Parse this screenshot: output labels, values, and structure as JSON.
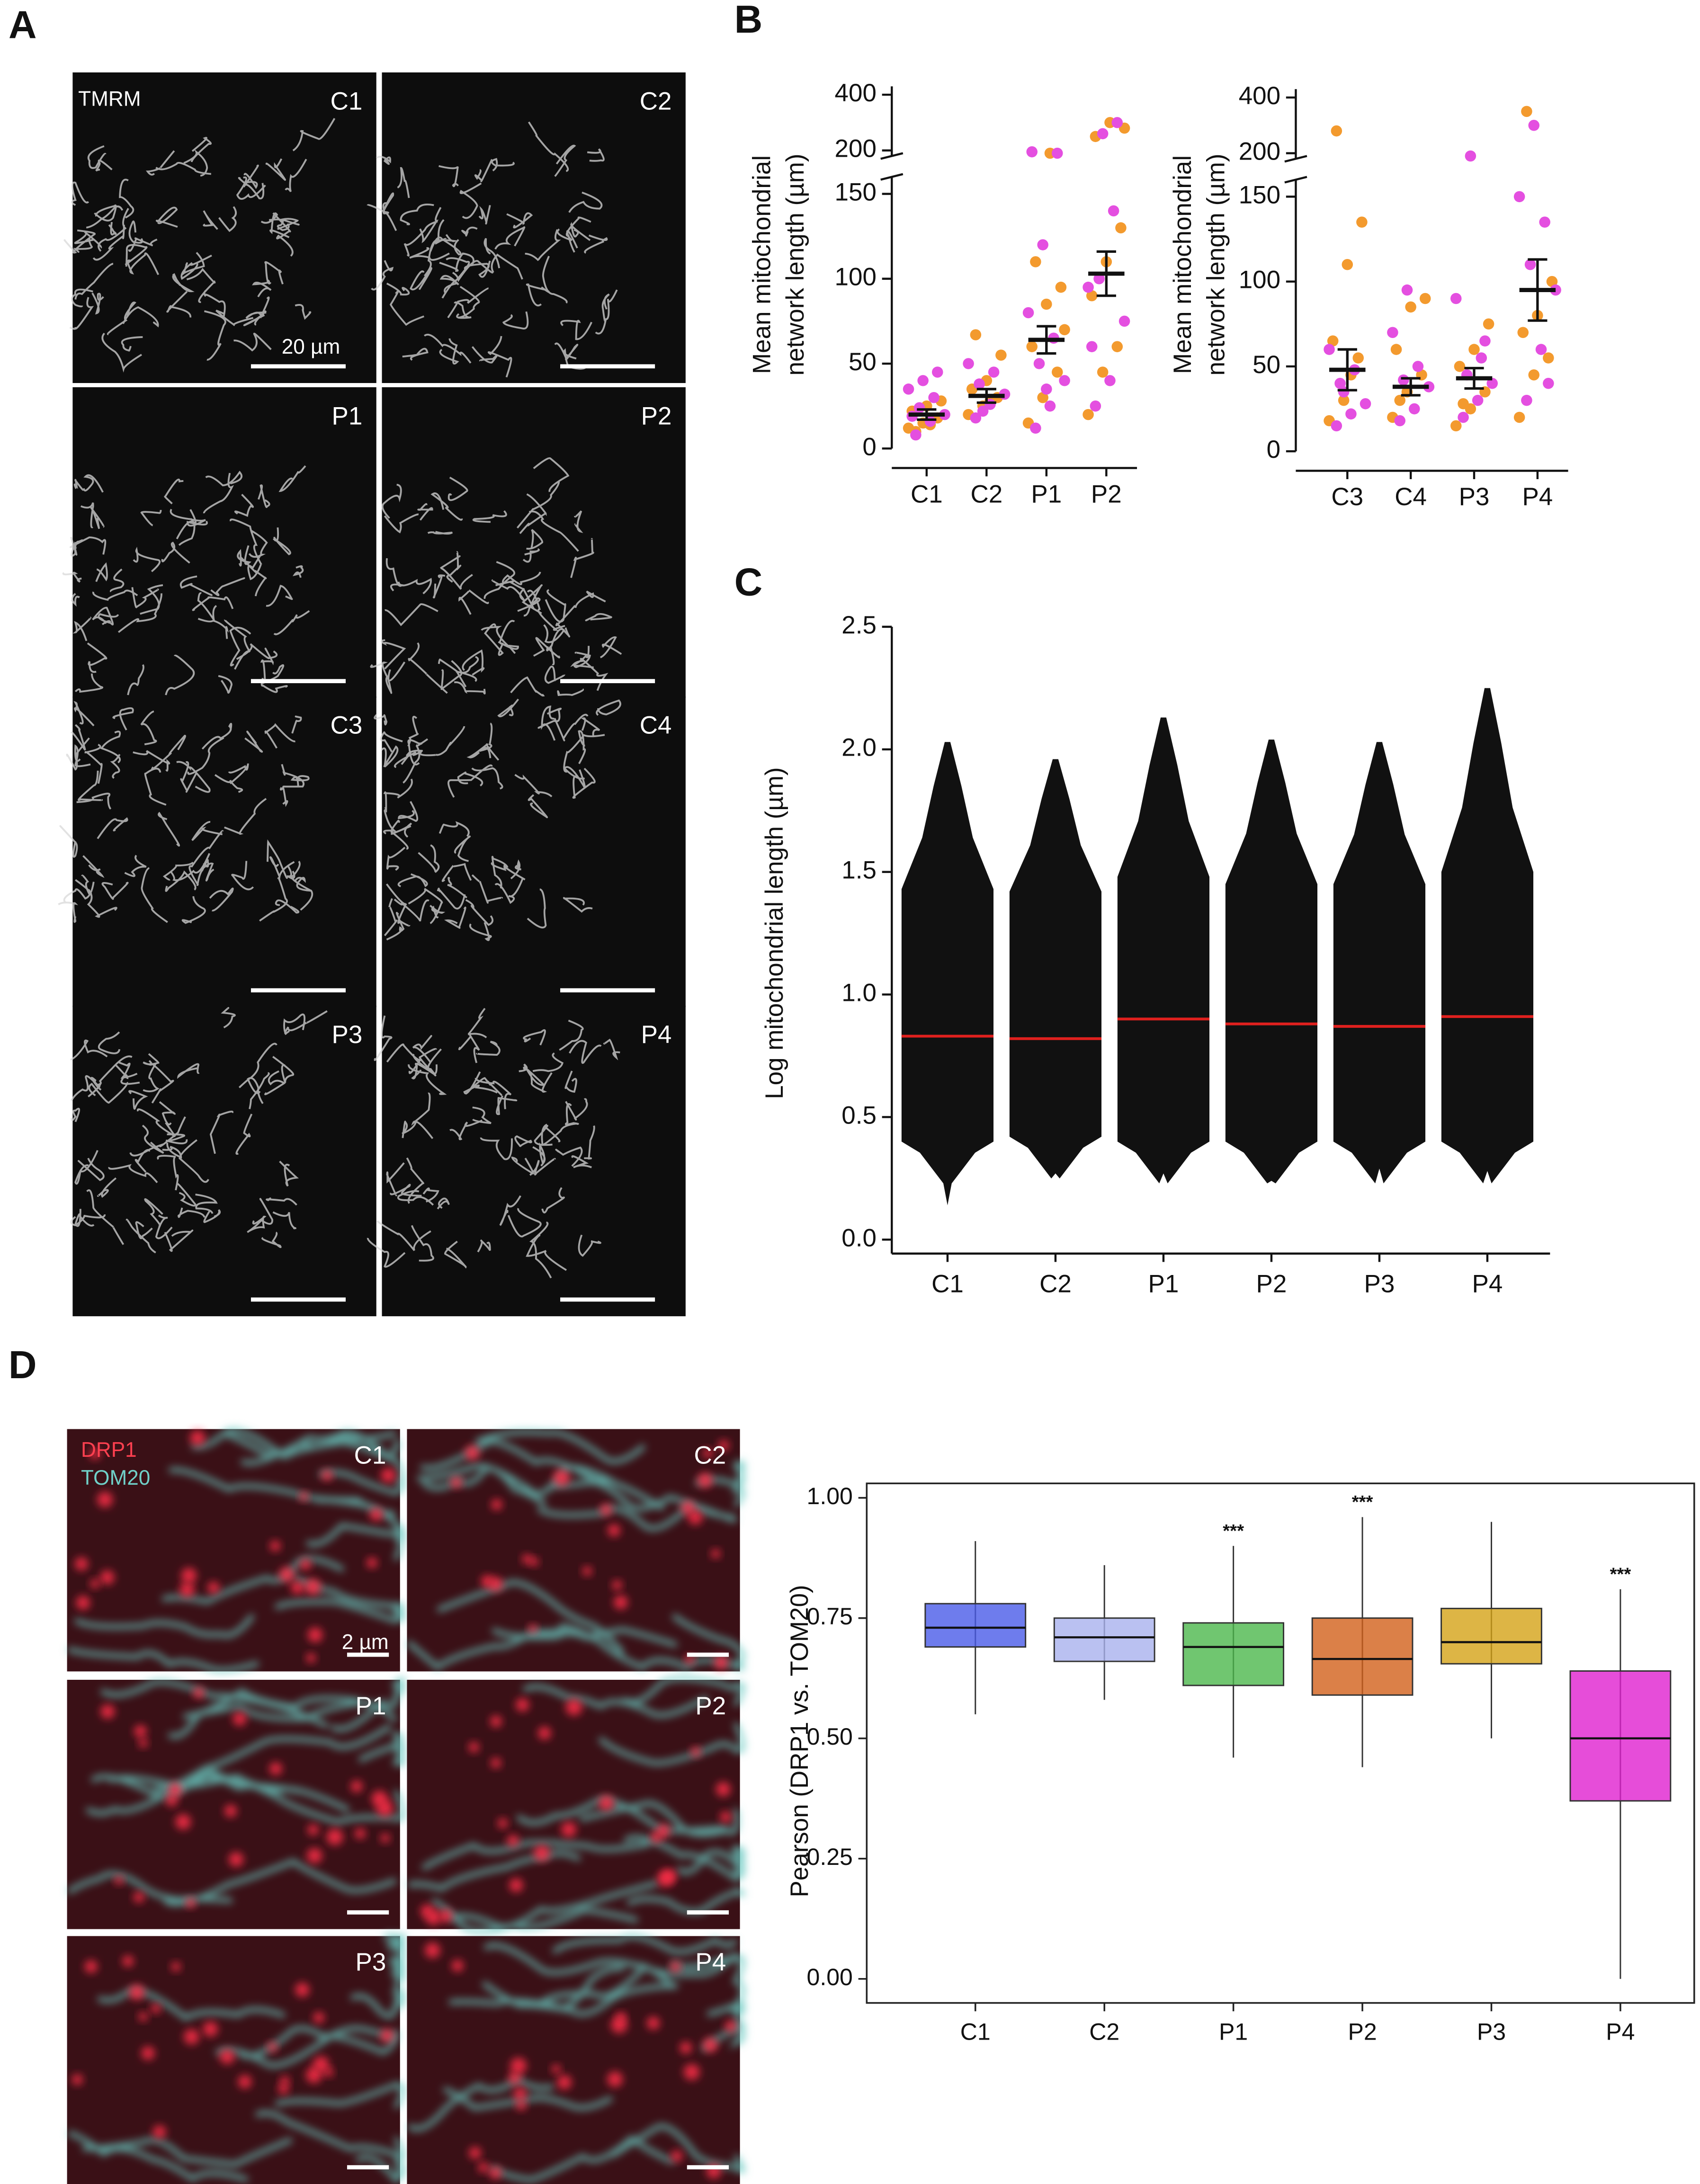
{
  "panel_labels": [
    "A",
    "B",
    "C",
    "D"
  ],
  "panel_a": {
    "stain": "TMRM",
    "scale_bar": "20 µm",
    "images": [
      "C1",
      "C2",
      "P1",
      "P2",
      "C3",
      "C4",
      "P3",
      "P4"
    ]
  },
  "panel_d_images": {
    "stains": [
      "DRP1",
      "TOM20"
    ],
    "scale_bar": "2 µm",
    "images": [
      "C1",
      "C2",
      "P1",
      "P2",
      "P3",
      "P4"
    ]
  },
  "chart_data": [
    {
      "type": "dotplot",
      "ylabel": [
        "Mean mitochondrial",
        "network length (µm)"
      ],
      "categories": [
        "C1",
        "C2",
        "P1",
        "P2"
      ],
      "series": [
        {
          "color": "#f39a2e",
          "values": [
            [
              12,
              15,
              18,
              22,
              25,
              28,
              10,
              14
            ],
            [
              20,
              25,
              30,
              35,
              40,
              55,
              67,
              28
            ],
            [
              15,
              30,
              45,
              60,
              85,
              95,
              110,
              190,
              70
            ],
            [
              20,
              45,
              60,
              90,
              110,
              130,
              250,
              300,
              280
            ]
          ]
        },
        {
          "color": "#e44fe0",
          "values": [
            [
              8,
              16,
              20,
              24,
              30,
              35,
              40,
              45,
              19
            ],
            [
              18,
              26,
              32,
              38,
              45,
              50,
              22
            ],
            [
              12,
              25,
              40,
              50,
              65,
              80,
              120,
              190,
              195,
              35
            ],
            [
              25,
              40,
              75,
              100,
              140,
              95,
              260,
              300,
              60
            ]
          ]
        }
      ],
      "means": [
        20,
        31,
        64,
        103
      ],
      "errors": [
        3,
        4,
        8,
        13
      ],
      "ylim": [
        0,
        160
      ],
      "yticks": [
        0,
        50,
        100,
        150
      ],
      "ylim_upper": [
        180,
        420
      ],
      "yticks_upper": [
        200,
        400
      ]
    },
    {
      "type": "dotplot",
      "ylabel": [
        "Mean mitochondrial",
        "network length (µm)"
      ],
      "categories": [
        "C3",
        "C4",
        "P3",
        "P4"
      ],
      "series": [
        {
          "color": "#f39a2e",
          "values": [
            [
              18,
              30,
              55,
              65,
              110,
              135,
              280,
              45
            ],
            [
              20,
              35,
              45,
              60,
              85,
              90,
              30
            ],
            [
              15,
              25,
              35,
              50,
              60,
              75,
              28
            ],
            [
              20,
              45,
              55,
              70,
              80,
              100,
              350
            ]
          ]
        },
        {
          "color": "#e44fe0",
          "values": [
            [
              15,
              22,
              28,
              40,
              48,
              60,
              35
            ],
            [
              18,
              25,
              38,
              42,
              50,
              70,
              95
            ],
            [
              20,
              30,
              40,
              45,
              55,
              90,
              190,
              65
            ],
            [
              30,
              60,
              95,
              110,
              135,
              150,
              300,
              40
            ]
          ]
        }
      ],
      "means": [
        48,
        38,
        43,
        95
      ],
      "errors": [
        12,
        5,
        6,
        18
      ],
      "ylim": [
        0,
        160
      ],
      "yticks": [
        0,
        50,
        100,
        150
      ],
      "ylim_upper": [
        180,
        420
      ],
      "yticks_upper": [
        200,
        400
      ]
    },
    {
      "type": "strip",
      "ylabel": "Log mitochondrial length (µm)",
      "categories": [
        "C1",
        "C2",
        "P1",
        "P2",
        "P3",
        "P4"
      ],
      "mins": [
        0.14,
        0.27,
        0.27,
        0.24,
        0.29,
        0.28
      ],
      "dense_lows": [
        0.4,
        0.42,
        0.4,
        0.4,
        0.4,
        0.4
      ],
      "dense_highs": [
        1.43,
        1.42,
        1.48,
        1.45,
        1.45,
        1.5
      ],
      "maxs": [
        2.03,
        1.96,
        2.13,
        2.04,
        2.03,
        2.25
      ],
      "medians": [
        0.83,
        0.82,
        0.9,
        0.88,
        0.87,
        0.91
      ],
      "color": "#111111",
      "median_color": "#e0201e",
      "ylim": [
        0,
        2.5
      ],
      "yticks": [
        {
          "value": 0,
          "label": "0.0"
        },
        0.5,
        {
          "value": 1,
          "label": "1.0"
        },
        1.5,
        {
          "value": 2,
          "label": "2.0"
        },
        2.5
      ]
    },
    {
      "type": "box",
      "ylabel": "Pearson (DRP1 vs. TOM20)",
      "categories": [
        "C1",
        "C2",
        "P1",
        "P2",
        "P3",
        "P4"
      ],
      "whisker_lows": [
        0.55,
        0.58,
        0.46,
        0.44,
        0.5,
        0
      ],
      "q1": [
        0.69,
        0.66,
        0.61,
        0.59,
        0.655,
        0.37
      ],
      "medians": [
        0.73,
        0.71,
        0.69,
        0.665,
        0.7,
        0.5
      ],
      "q3": [
        0.78,
        0.75,
        0.74,
        0.75,
        0.77,
        0.64
      ],
      "whisker_highs": [
        0.91,
        0.86,
        0.9,
        0.96,
        0.95,
        0.81
      ],
      "colors": [
        "#4a5be8",
        "#a9b1ee",
        "#4cb84c",
        "#d2601a",
        "#d4a216",
        "#e020d0"
      ],
      "significance": [
        null,
        null,
        "***",
        "***",
        null,
        "***"
      ],
      "ylim": [
        -0.05,
        1.03
      ],
      "yticks": [
        {
          "value": 0,
          "label": "0.00"
        },
        {
          "value": 0.25,
          "label": "0.25"
        },
        {
          "value": 0.5,
          "label": "0.50"
        },
        {
          "value": 0.75,
          "label": "0.75"
        },
        {
          "value": 1,
          "label": "1.00"
        }
      ]
    }
  ]
}
